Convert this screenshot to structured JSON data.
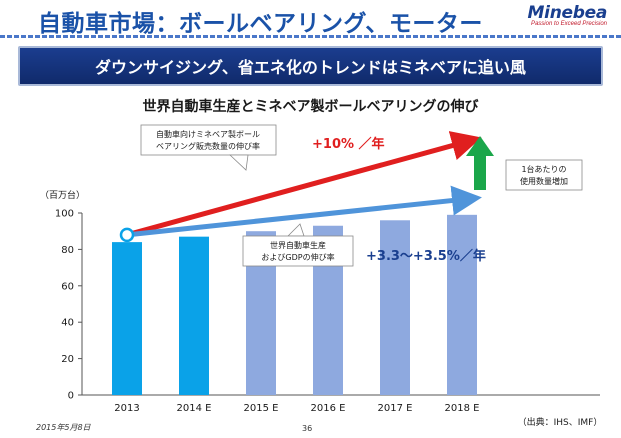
{
  "header": {
    "title": "自動車市場：ボールベアリング、モーター",
    "logo_name": "Minebea",
    "logo_tagline": "Passion to Exceed Precision"
  },
  "banner": {
    "headline": "ダウンサイジング、省エネ化のトレンドはミネベアに追い風"
  },
  "chart_data": {
    "type": "bar",
    "title": "世界自動車生産とミネベア製ボールベアリングの伸び",
    "unit_label": "（百万台）",
    "categories": [
      "2013",
      "2014 E",
      "2015 E",
      "2016 E",
      "2017 E",
      "2018 E"
    ],
    "series": [
      {
        "values": [
          84,
          87,
          90,
          93,
          96,
          99
        ]
      }
    ],
    "ylim": [
      0,
      100
    ],
    "yticks": [
      0,
      20,
      40,
      60,
      80,
      100
    ],
    "bar_colors": [
      "#0aa2e8",
      "#0aa2e8",
      "#8ea9df",
      "#8ea9df",
      "#8ea9df",
      "#8ea9df"
    ],
    "grid": false,
    "trend_arrows": [
      {
        "from": [
          "2013",
          88
        ],
        "to": [
          "2018 E",
          140
        ],
        "color": "#e01f1f"
      },
      {
        "from": [
          "2013",
          88
        ],
        "to": [
          "2018 E",
          108
        ],
        "color": "#4f94da"
      }
    ],
    "annotations": {
      "red_box_line1": "自動車向けミネベア製ボール",
      "red_box_line2": "ベアリング販売数量の伸び率",
      "red_rate": "+10% ／年",
      "blue_box_line1": "世界自動車生産",
      "blue_box_line2": "およびGDPの伸び率",
      "blue_rate": "+3.3～+3.5%／年",
      "green_box_line1": "1台あたりの",
      "green_box_line2": "使用数量増加"
    },
    "source": "（出典：IHS、IMF）"
  },
  "footer": {
    "date": "2015年5月8日",
    "page_number": "36"
  },
  "colors": {
    "title_blue": "#1a52a8",
    "banner_navy": "#102a6b",
    "red_arrow": "#e01f1f",
    "blue_arrow": "#4f94da",
    "green_arrow": "#1aa64a"
  }
}
